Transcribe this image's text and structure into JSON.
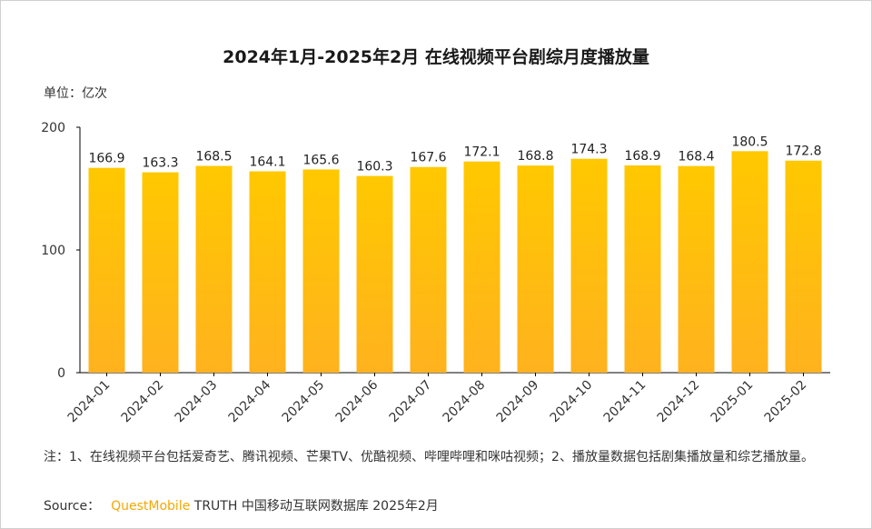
{
  "chart_data": {
    "type": "bar",
    "title": "2024年1月-2025年2月 在线视频平台剧综月度播放量",
    "unit_label": "单位：亿次",
    "categories": [
      "2024-01",
      "2024-02",
      "2024-03",
      "2024-04",
      "2024-05",
      "2024-06",
      "2024-07",
      "2024-08",
      "2024-09",
      "2024-10",
      "2024-11",
      "2024-12",
      "2025-01",
      "2025-02"
    ],
    "values": [
      166.9,
      163.3,
      168.5,
      164.1,
      165.6,
      160.3,
      167.6,
      172.1,
      168.8,
      174.3,
      168.9,
      168.4,
      180.5,
      172.8
    ],
    "value_labels": [
      "166.9",
      "163.3",
      "168.5",
      "164.1",
      "165.6",
      "160.3",
      "167.6",
      "172.1",
      "168.8",
      "174.3",
      "168.9",
      "168.4",
      "180.5",
      "172.8"
    ],
    "ylim": [
      0,
      200
    ],
    "yticks": [
      0,
      100,
      200
    ],
    "ytick_labels": [
      "0",
      "100",
      "200"
    ],
    "xlabel": "",
    "ylabel": "",
    "grid": false,
    "bar_color_top": "#ffc800",
    "bar_color_bottom": "#ffb21e"
  },
  "note": "注：1、在线视频平台包括爱奇艺、腾讯视频、芒果TV、优酷视频、哔哩哔哩和咪咕视频；2、播放量数据包括剧集播放量和综艺播放量。",
  "source": {
    "label": "Source：",
    "brand": "QuestMobile",
    "text": "TRUTH 中国移动互联网数据库 2025年2月"
  },
  "colors": {
    "brand": "#f5a800",
    "text": "#333333"
  }
}
